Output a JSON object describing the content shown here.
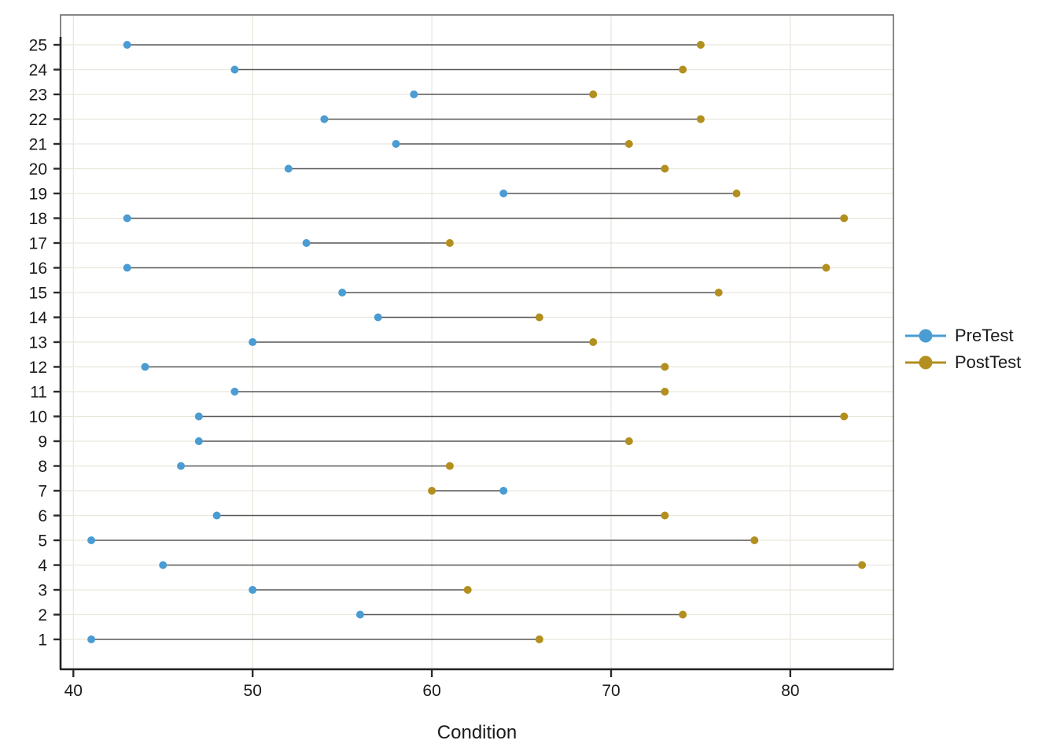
{
  "chart_data": {
    "type": "dumbbell",
    "title": "",
    "xlabel": "Condition",
    "ylabel": "",
    "x_ticks": [
      40,
      50,
      60,
      70,
      80
    ],
    "xlim": [
      39.3,
      85.7
    ],
    "grid": "major-only",
    "legend_position": "right",
    "categories": [
      "1",
      "2",
      "3",
      "4",
      "5",
      "6",
      "7",
      "8",
      "9",
      "10",
      "11",
      "12",
      "13",
      "14",
      "15",
      "16",
      "17",
      "18",
      "19",
      "20",
      "21",
      "22",
      "23",
      "24",
      "25"
    ],
    "series": [
      {
        "name": "PreTest",
        "color": "#4A9CD3",
        "values": [
          41,
          56,
          50,
          45,
          41,
          48,
          64,
          46,
          47,
          47,
          49,
          44,
          50,
          57,
          55,
          43,
          53,
          43,
          64,
          52,
          58,
          54,
          59,
          49,
          43
        ]
      },
      {
        "name": "PostTest",
        "color": "#B28F1E",
        "values": [
          66,
          74,
          62,
          84,
          78,
          73,
          60,
          61,
          71,
          83,
          73,
          73,
          69,
          66,
          76,
          82,
          61,
          83,
          77,
          73,
          71,
          75,
          69,
          74,
          75
        ]
      }
    ],
    "style": {
      "connector_color": "#585858",
      "gridline_color": "#EAE6DD",
      "panel_border_color": "#6a6a6a",
      "axis_line_color": "#212121",
      "tick_color": "#2b2b2b",
      "text_color": "#1a1a1a"
    }
  }
}
